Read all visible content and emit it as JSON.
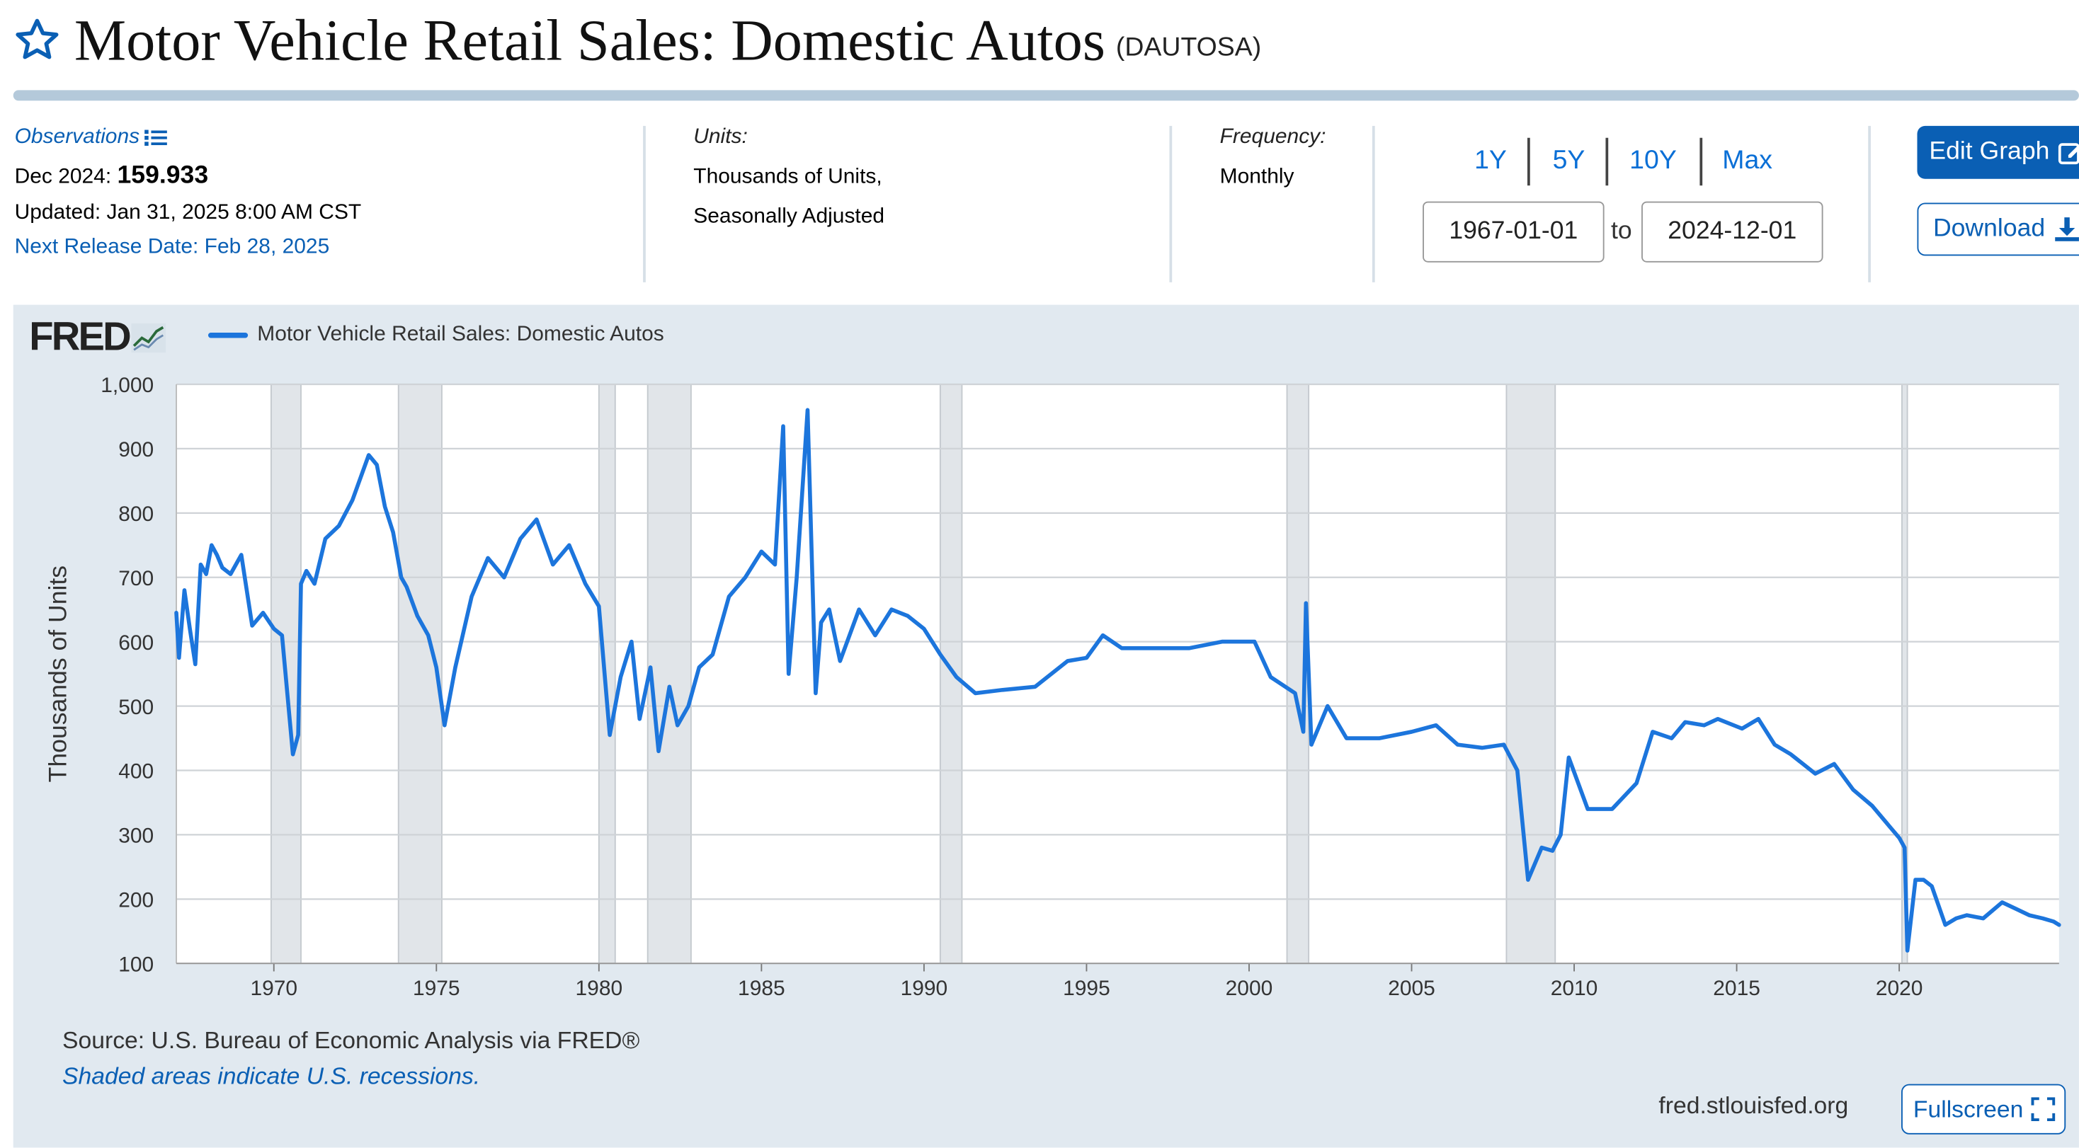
{
  "header": {
    "title": "Motor Vehicle Retail Sales: Domestic Autos",
    "series_id": "(DAUTOSA)"
  },
  "observations": {
    "link_label": "Observations",
    "latest_label": "Dec 2024:",
    "latest_value": "159.933",
    "updated": "Updated: Jan 31, 2025 8:00 AM CST",
    "next_release": "Next Release Date: Feb 28, 2025"
  },
  "units": {
    "label": "Units:",
    "line1": "Thousands of Units,",
    "line2": "Seasonally Adjusted"
  },
  "frequency": {
    "label": "Frequency:",
    "value": "Monthly"
  },
  "range_buttons": [
    "1Y",
    "5Y",
    "10Y",
    "Max"
  ],
  "date_range": {
    "start": "1967-01-01",
    "to_label": "to",
    "end": "2024-12-01"
  },
  "buttons": {
    "edit_graph": "Edit Graph",
    "download": "Download",
    "fullscreen": "Fullscreen"
  },
  "footer": {
    "source": "Source: U.S. Bureau of Economic Analysis via FRED®",
    "shade_note": "Shaded areas indicate U.S. recessions.",
    "url": "fred.stlouisfed.org"
  },
  "logo_text": "FRED",
  "colors": {
    "series": "#1c75dc",
    "accent": "#0a5fb4",
    "panel_bg": "#e1e9f0",
    "recession": "#e0e4e8"
  },
  "chart_data": {
    "type": "line",
    "title": "",
    "xlabel": "",
    "ylabel": "Thousands of Units",
    "ylim": [
      100,
      1000
    ],
    "xlim": [
      "1967-01-01",
      "2024-12-01"
    ],
    "x_ticks": [
      1970,
      1975,
      1980,
      1985,
      1990,
      1995,
      2000,
      2005,
      2010,
      2015,
      2020
    ],
    "y_ticks": [
      100,
      200,
      300,
      400,
      500,
      600,
      700,
      800,
      900,
      1000
    ],
    "y_tick_labels": [
      "100",
      "200",
      "300",
      "400",
      "500",
      "600",
      "700",
      "800",
      "900",
      "1,000"
    ],
    "grid": true,
    "legend_position": "top-left",
    "recessions": [
      [
        "1969-12",
        "1970-11"
      ],
      [
        "1973-11",
        "1975-03"
      ],
      [
        "1980-01",
        "1980-07"
      ],
      [
        "1981-07",
        "1982-11"
      ],
      [
        "1990-07",
        "1991-03"
      ],
      [
        "2001-03",
        "2001-11"
      ],
      [
        "2007-12",
        "2009-06"
      ],
      [
        "2020-02",
        "2020-04"
      ]
    ],
    "series": [
      {
        "name": "Motor Vehicle Retail Sales: Domestic Autos",
        "x": [
          "1967-01",
          "1967-02",
          "1967-04",
          "1967-06",
          "1967-08",
          "1967-10",
          "1967-12",
          "1968-02",
          "1968-04",
          "1968-06",
          "1968-09",
          "1969-01",
          "1969-05",
          "1969-09",
          "1970-01",
          "1970-04",
          "1970-08",
          "1970-10",
          "1970-11",
          "1971-01",
          "1971-04",
          "1971-08",
          "1972-01",
          "1972-06",
          "1972-12",
          "1973-03",
          "1973-06",
          "1973-09",
          "1973-12",
          "1974-02",
          "1974-06",
          "1974-10",
          "1975-01",
          "1975-04",
          "1975-08",
          "1976-02",
          "1976-08",
          "1977-02",
          "1977-08",
          "1978-02",
          "1978-08",
          "1979-02",
          "1979-08",
          "1980-01",
          "1980-05",
          "1980-09",
          "1981-01",
          "1981-04",
          "1981-08",
          "1981-11",
          "1982-03",
          "1982-06",
          "1982-10",
          "1983-02",
          "1983-07",
          "1984-01",
          "1984-07",
          "1985-01",
          "1985-06",
          "1985-09",
          "1985-11",
          "1986-02",
          "1986-06",
          "1986-09",
          "1986-11",
          "1987-02",
          "1987-06",
          "1988-01",
          "1988-07",
          "1989-01",
          "1989-07",
          "1990-01",
          "1990-07",
          "1991-01",
          "1991-08",
          "1992-06",
          "1993-06",
          "1994-06",
          "1995-01",
          "1995-07",
          "1996-02",
          "1997-03",
          "1998-03",
          "1999-03",
          "2000-03",
          "2000-09",
          "2001-06",
          "2001-09",
          "2001-10",
          "2001-12",
          "2002-06",
          "2003-01",
          "2004-01",
          "2005-01",
          "2005-10",
          "2006-06",
          "2007-03",
          "2007-11",
          "2008-04",
          "2008-08",
          "2009-01",
          "2009-05",
          "2009-08",
          "2009-11",
          "2010-06",
          "2011-03",
          "2011-12",
          "2012-06",
          "2013-01",
          "2013-06",
          "2014-01",
          "2014-06",
          "2015-03",
          "2015-09",
          "2016-03",
          "2016-09",
          "2017-06",
          "2018-01",
          "2018-08",
          "2019-03",
          "2019-10",
          "2020-01",
          "2020-03",
          "2020-04",
          "2020-07",
          "2020-10",
          "2021-01",
          "2021-06",
          "2021-10",
          "2022-02",
          "2022-08",
          "2023-03",
          "2023-08",
          "2024-01",
          "2024-06",
          "2024-10",
          "2024-12"
        ],
        "values": [
          645,
          575,
          680,
          620,
          565,
          720,
          705,
          750,
          735,
          715,
          705,
          735,
          625,
          645,
          620,
          610,
          425,
          455,
          690,
          710,
          690,
          760,
          780,
          820,
          890,
          875,
          810,
          770,
          700,
          685,
          640,
          610,
          560,
          470,
          560,
          670,
          730,
          700,
          760,
          790,
          720,
          750,
          690,
          655,
          455,
          545,
          600,
          480,
          560,
          430,
          530,
          470,
          500,
          560,
          580,
          670,
          700,
          740,
          720,
          935,
          550,
          700,
          960,
          520,
          630,
          650,
          570,
          650,
          610,
          650,
          640,
          620,
          580,
          545,
          520,
          525,
          530,
          570,
          575,
          610,
          590,
          590,
          590,
          600,
          600,
          545,
          520,
          460,
          660,
          440,
          500,
          450,
          450,
          460,
          470,
          440,
          435,
          440,
          400,
          230,
          280,
          275,
          300,
          420,
          340,
          340,
          380,
          460,
          450,
          475,
          470,
          480,
          465,
          480,
          440,
          425,
          395,
          410,
          370,
          345,
          310,
          295,
          280,
          120,
          230,
          230,
          220,
          160,
          170,
          175,
          170,
          195,
          185,
          175,
          170,
          165,
          160
        ]
      }
    ]
  }
}
